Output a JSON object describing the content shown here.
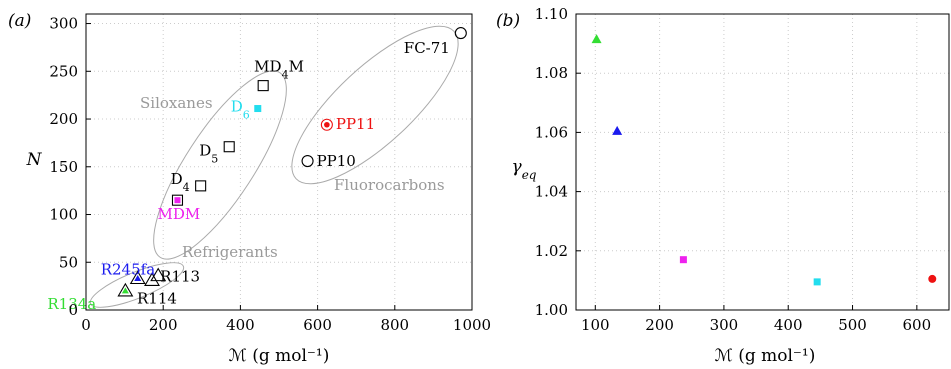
{
  "chart_data": [
    {
      "panel_label": "(a)",
      "type": "scatter",
      "xlabel": "ℳ (g mol⁻¹)",
      "ylabel": "N",
      "xlim": [
        0,
        1000
      ],
      "ylim": [
        0,
        310
      ],
      "xticks": [
        "0",
        "200",
        "400",
        "600",
        "800",
        "1000"
      ],
      "yticks": [
        "0",
        "50",
        "100",
        "150",
        "200",
        "250",
        "300"
      ],
      "grid": true,
      "points": [
        {
          "label": "R134a",
          "x": 102,
          "y": 20,
          "marker": "triangle-open",
          "color": "#000000",
          "fill": "#33dd33",
          "label_color": "#33dd33"
        },
        {
          "label": "R245fa",
          "x": 134,
          "y": 33,
          "marker": "triangle-open",
          "color": "#000000",
          "fill": "#1a1aee",
          "label_color": "#1a1aee"
        },
        {
          "label": "R114",
          "x": 171,
          "y": 31,
          "marker": "triangle-open",
          "color": "#000000",
          "fill": "none",
          "label_color": "#000000"
        },
        {
          "label": "R113",
          "x": 187,
          "y": 36,
          "marker": "triangle-open",
          "color": "#000000",
          "fill": "none",
          "label_color": "#000000"
        },
        {
          "label": "MDM",
          "x": 237,
          "y": 115,
          "marker": "square-open",
          "color": "#000000",
          "fill": "#ee22ee",
          "label_color": "#ee22ee"
        },
        {
          "label": "D4",
          "x": 297,
          "y": 130,
          "marker": "square-open",
          "color": "#000000",
          "fill": "none",
          "label_color": "#000000"
        },
        {
          "label": "D5",
          "x": 371,
          "y": 171,
          "marker": "square-open",
          "color": "#000000",
          "fill": "none",
          "label_color": "#000000"
        },
        {
          "label": "D6",
          "x": 445,
          "y": 211,
          "marker": "square-filled",
          "color": "#22ddee",
          "fill": "#22ddee",
          "label_color": "#22ddee"
        },
        {
          "label": "MD4M",
          "x": 459,
          "y": 235,
          "marker": "square-open",
          "color": "#000000",
          "fill": "none",
          "label_color": "#000000"
        },
        {
          "label": "PP10",
          "x": 574,
          "y": 156,
          "marker": "circle-open",
          "color": "#000000",
          "fill": "none",
          "label_color": "#000000"
        },
        {
          "label": "PP11",
          "x": 624,
          "y": 194,
          "marker": "circle-open",
          "color": "#ee1111",
          "fill": "#ee1111",
          "label_color": "#ee1111"
        },
        {
          "label": "FC-71",
          "x": 971,
          "y": 290,
          "marker": "circle-open",
          "color": "#000000",
          "fill": "none",
          "label_color": "#000000"
        }
      ],
      "groups": [
        "Siloxanes",
        "Fluorocarbons",
        "Refrigerants"
      ]
    },
    {
      "panel_label": "(b)",
      "type": "scatter",
      "xlabel": "ℳ (g mol⁻¹)",
      "ylabel": "γeq",
      "xlim": [
        70,
        650
      ],
      "ylim": [
        1.0,
        1.1
      ],
      "xticks": [
        "100",
        "200",
        "300",
        "400",
        "500",
        "600"
      ],
      "yticks": [
        "1.00",
        "1.02",
        "1.04",
        "1.06",
        "1.08",
        "1.10"
      ],
      "grid": true,
      "points": [
        {
          "x": 102,
          "y": 1.0915,
          "marker": "triangle-filled",
          "color": "#33dd33"
        },
        {
          "x": 134,
          "y": 1.0605,
          "marker": "triangle-filled",
          "color": "#1a1aee"
        },
        {
          "x": 237,
          "y": 1.017,
          "marker": "square-filled",
          "color": "#ee22ee"
        },
        {
          "x": 445,
          "y": 1.0095,
          "marker": "square-filled",
          "color": "#22ddee"
        },
        {
          "x": 624,
          "y": 1.0105,
          "marker": "circle-filled",
          "color": "#ee1111"
        }
      ]
    }
  ]
}
